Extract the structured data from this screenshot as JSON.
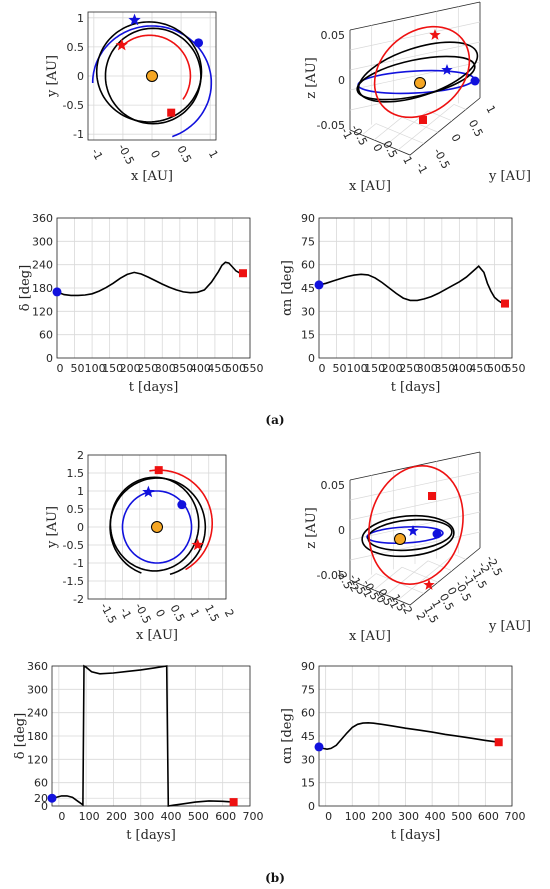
{
  "colors": {
    "red": "#ee1111",
    "blue": "#1111dd",
    "black": "#000000",
    "sun": "#f5a623",
    "grid": "#d9d9d9",
    "axis": "#262626"
  },
  "captions": {
    "a": "(a)",
    "b": "(b)"
  },
  "chart_data": [
    {
      "id": "a1",
      "type": "line",
      "subtype": "orbit-2d",
      "xlabel": "x [AU]",
      "ylabel": "y [AU]",
      "xlim": [
        -1.1,
        1.1
      ],
      "ylim": [
        -1.1,
        1.1
      ],
      "xticks": [
        "-1",
        "-0.5",
        "0",
        "0.5",
        "1"
      ],
      "yticks": [
        "-1",
        "-0.5",
        "0",
        "0.5",
        "1"
      ],
      "series": [
        {
          "color": "blue",
          "shape": "ellipse",
          "cx": 0,
          "cy": -0.12,
          "a": 1.02,
          "b": 0.98,
          "start_deg": -70,
          "end_deg": 180
        },
        {
          "color": "black",
          "shape": "ellipse",
          "cx": -0.05,
          "cy": 0.07,
          "a": 0.9,
          "b": 0.86
        },
        {
          "color": "black",
          "shape": "ellipse",
          "cx": 0.02,
          "cy": 0.0,
          "a": 0.82,
          "b": 0.82
        },
        {
          "color": "red",
          "shape": "ellipse",
          "cx": -0.04,
          "cy": 0.0,
          "a": 0.7,
          "b": 0.7,
          "start_deg": -35,
          "end_deg": 135
        }
      ],
      "markers": [
        {
          "type": "star",
          "color": "blue",
          "x": -0.3,
          "y": 0.96
        },
        {
          "type": "circle",
          "color": "blue",
          "x": 0.8,
          "y": 0.57
        },
        {
          "type": "star",
          "color": "red",
          "x": -0.52,
          "y": 0.53
        },
        {
          "type": "square",
          "color": "red",
          "x": 0.33,
          "y": -0.63
        },
        {
          "type": "sun",
          "x": 0,
          "y": 0
        }
      ]
    },
    {
      "id": "a2",
      "type": "line",
      "subtype": "orbit-3d",
      "xlabel": "x [AU]",
      "ylabel": "y [AU]",
      "zlabel": "z [AU]",
      "xticks": [
        "-1",
        "-0.5",
        "0",
        "0.5",
        "1"
      ],
      "yticks": [
        "-1",
        "-0.5",
        "0",
        "0.5",
        "1"
      ],
      "zticks": [
        "-0.05",
        "0",
        "0.05"
      ]
    },
    {
      "id": "a3",
      "type": "line",
      "xlabel": "t [days]",
      "ylabel": "δ [deg]",
      "xlim": [
        0,
        550
      ],
      "ylim": [
        0,
        360
      ],
      "xticks": [
        0,
        50,
        100,
        150,
        200,
        250,
        300,
        350,
        400,
        450,
        500,
        550
      ],
      "yticks": [
        0,
        60,
        120,
        180,
        240,
        300,
        360
      ],
      "series": [
        {
          "color": "black",
          "x": [
            0,
            20,
            40,
            60,
            80,
            100,
            120,
            140,
            160,
            180,
            200,
            220,
            240,
            260,
            280,
            300,
            320,
            340,
            360,
            380,
            400,
            420,
            440,
            460,
            470,
            480,
            490,
            500,
            510,
            520,
            530
          ],
          "y": [
            170,
            163,
            161,
            161,
            162,
            165,
            172,
            181,
            192,
            205,
            215,
            220,
            216,
            208,
            199,
            190,
            182,
            175,
            170,
            168,
            169,
            175,
            195,
            222,
            238,
            246,
            244,
            234,
            224,
            219,
            218
          ]
        }
      ],
      "markers": [
        {
          "type": "circle",
          "color": "blue",
          "x": 0,
          "y": 170
        },
        {
          "type": "square",
          "color": "red",
          "x": 530,
          "y": 218
        }
      ]
    },
    {
      "id": "a4",
      "type": "line",
      "xlabel": "t [days]",
      "ylabel": "αn [deg]",
      "xlim": [
        0,
        550
      ],
      "ylim": [
        0,
        90
      ],
      "xticks": [
        0,
        50,
        100,
        150,
        200,
        250,
        300,
        350,
        400,
        450,
        500,
        550
      ],
      "yticks": [
        0,
        15,
        30,
        45,
        60,
        75,
        90
      ],
      "series": [
        {
          "color": "black",
          "x": [
            0,
            20,
            40,
            60,
            80,
            100,
            120,
            140,
            160,
            180,
            200,
            220,
            240,
            260,
            280,
            300,
            320,
            340,
            360,
            380,
            400,
            420,
            440,
            455,
            470,
            480,
            490,
            500,
            510,
            520,
            530
          ],
          "y": [
            47,
            48,
            49.5,
            51,
            52.3,
            53.3,
            53.8,
            53.4,
            51.5,
            48.5,
            45,
            41.5,
            38.5,
            37,
            37,
            38,
            39.5,
            41.5,
            44,
            46.5,
            49,
            52,
            56,
            59,
            55,
            48,
            43,
            39,
            37,
            35.5,
            35
          ]
        }
      ],
      "markers": [
        {
          "type": "circle",
          "color": "blue",
          "x": 0,
          "y": 47
        },
        {
          "type": "square",
          "color": "red",
          "x": 530,
          "y": 35
        }
      ]
    },
    {
      "id": "b1",
      "type": "line",
      "subtype": "orbit-2d",
      "xlabel": "x [AU]",
      "ylabel": "y [AU]",
      "xlim": [
        -2,
        2
      ],
      "ylim": [
        -2,
        2
      ],
      "xticks": [
        "-1.5",
        "-1",
        "-0.5",
        "0",
        "0.5",
        "1",
        "1.5",
        "2"
      ],
      "yticks": [
        "-2",
        "-1.5",
        "-1",
        "-0.5",
        "0",
        "0.5",
        "1",
        "1.5",
        "2"
      ],
      "series": [
        {
          "color": "blue",
          "shape": "ellipse",
          "cx": 0,
          "cy": 0,
          "a": 1.0,
          "b": 1.0
        },
        {
          "color": "black",
          "shape": "ellipse",
          "cx": 0.02,
          "cy": 0.0,
          "a": 1.38,
          "b": 1.36,
          "start_deg": -75,
          "end_deg": 250
        },
        {
          "color": "black",
          "shape": "ellipse",
          "cx": -0.07,
          "cy": 0.08,
          "a": 1.28,
          "b": 1.3
        },
        {
          "color": "red",
          "shape": "ellipse",
          "cx": 0.05,
          "cy": 0.1,
          "a": 1.55,
          "b": 1.48,
          "start_deg": -60,
          "end_deg": 100
        }
      ],
      "markers": [
        {
          "type": "star",
          "color": "blue",
          "x": -0.25,
          "y": 0.97
        },
        {
          "type": "circle",
          "color": "blue",
          "x": 0.72,
          "y": 0.62
        },
        {
          "type": "square",
          "color": "red",
          "x": 0.05,
          "y": 1.58
        },
        {
          "type": "star",
          "color": "red",
          "x": 1.18,
          "y": -0.5
        },
        {
          "type": "sun",
          "x": 0,
          "y": 0
        }
      ]
    },
    {
      "id": "b2",
      "type": "line",
      "subtype": "orbit-3d",
      "xlabel": "x [AU]",
      "ylabel": "y [AU]",
      "zlabel": "z [AU]",
      "xticks": [
        "-2.5",
        "-2",
        "-1.5",
        "-1",
        "-0.5",
        "0",
        "0.5",
        "1",
        "1.5",
        "2"
      ],
      "yticks": [
        "2",
        "1.5",
        "1",
        "0.5",
        "0",
        "-0.5",
        "-1",
        "-1.5",
        "-2",
        "-2.5"
      ],
      "zticks": [
        "-0.05",
        "0",
        "0.05"
      ]
    },
    {
      "id": "b3",
      "type": "line",
      "xlabel": "t [days]",
      "ylabel": "δ [deg]",
      "xlim": [
        -25,
        700
      ],
      "ylim": [
        0,
        360
      ],
      "xticks": [
        0,
        100,
        200,
        300,
        400,
        500,
        600,
        700
      ],
      "yticks": [
        0,
        20,
        60,
        120,
        180,
        240,
        300,
        360
      ],
      "series": [
        {
          "color": "black",
          "x": [
            -25,
            -10,
            10,
            30,
            50,
            70,
            88,
            92,
            100,
            120,
            150,
            200,
            250,
            300,
            350,
            395,
            398,
            401,
            420,
            450,
            500,
            550,
            600,
            640
          ],
          "y": [
            20,
            22,
            26,
            26,
            22,
            12,
            3,
            360,
            357,
            345,
            340,
            342,
            346,
            350,
            355,
            360,
            180,
            0,
            2,
            5,
            10,
            13,
            12,
            10
          ]
        }
      ],
      "markers": [
        {
          "type": "circle",
          "color": "blue",
          "x": -25,
          "y": 20
        },
        {
          "type": "square",
          "color": "red",
          "x": 640,
          "y": 10
        }
      ]
    },
    {
      "id": "b4",
      "type": "line",
      "xlabel": "t [days]",
      "ylabel": "αn [deg]",
      "xlim": [
        -25,
        700
      ],
      "ylim": [
        0,
        90
      ],
      "xticks": [
        0,
        100,
        200,
        300,
        400,
        500,
        600,
        700
      ],
      "yticks": [
        0,
        15,
        30,
        45,
        60,
        75,
        90
      ],
      "series": [
        {
          "color": "black",
          "x": [
            -25,
            -10,
            5,
            20,
            40,
            60,
            80,
            100,
            120,
            140,
            160,
            180,
            200,
            250,
            300,
            350,
            400,
            450,
            500,
            550,
            600,
            650
          ],
          "y": [
            38,
            37,
            36.5,
            37,
            39,
            43,
            47,
            50.5,
            52.5,
            53.3,
            53.5,
            53.2,
            52.8,
            51.5,
            50,
            48.8,
            47.5,
            46,
            44.8,
            43.5,
            42.2,
            41
          ]
        }
      ],
      "markers": [
        {
          "type": "circle",
          "color": "blue",
          "x": -25,
          "y": 38
        },
        {
          "type": "square",
          "color": "red",
          "x": 650,
          "y": 41
        }
      ]
    }
  ]
}
